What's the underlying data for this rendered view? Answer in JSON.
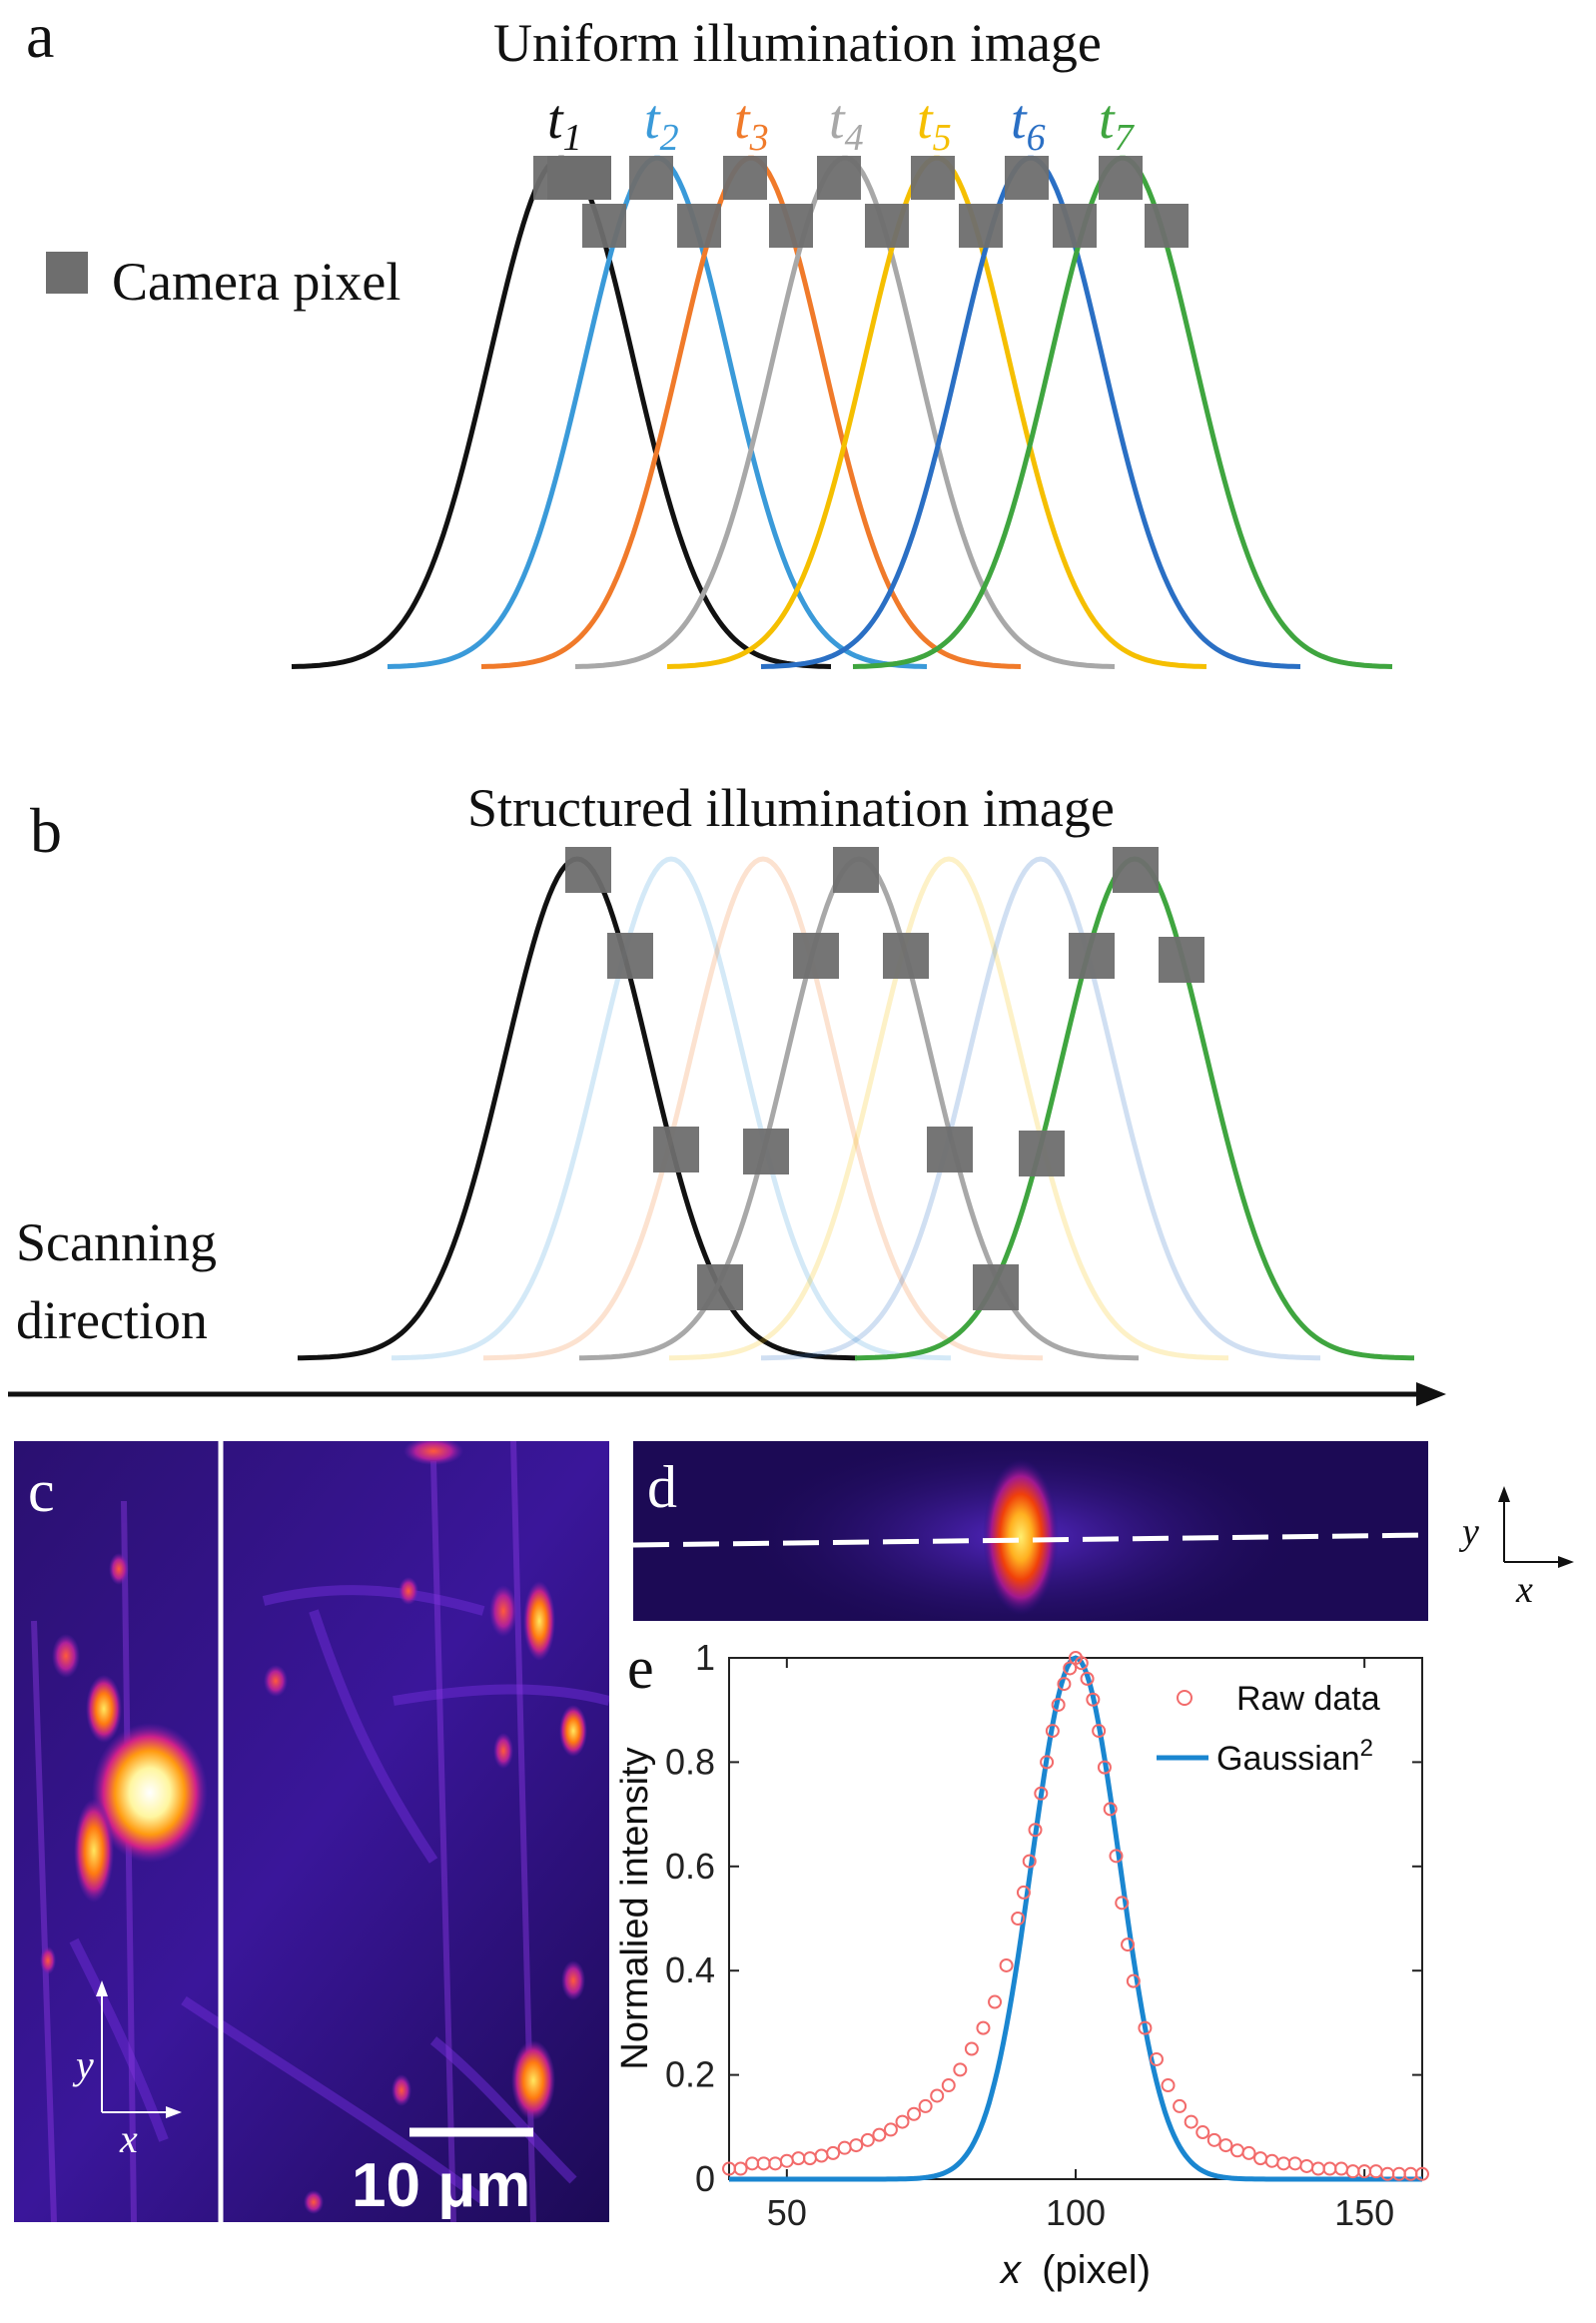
{
  "panel_a": {
    "letter": "a",
    "title": "Uniform illumination image",
    "legend_label": "Camera pixel",
    "time_labels": [
      {
        "base": "t",
        "sub": "1",
        "color": "#111111"
      },
      {
        "base": "t",
        "sub": "2",
        "color": "#3a9ad9"
      },
      {
        "base": "t",
        "sub": "3",
        "color": "#f07a2a"
      },
      {
        "base": "t",
        "sub": "4",
        "color": "#a8a8a8"
      },
      {
        "base": "t",
        "sub": "5",
        "color": "#f5bf00"
      },
      {
        "base": "t",
        "sub": "6",
        "color": "#2a6fc4"
      },
      {
        "base": "t",
        "sub": "7",
        "color": "#3fa53f"
      }
    ]
  },
  "panel_b": {
    "letter": "b",
    "title": "Structured illumination image",
    "scan_label_line1": "Scanning",
    "scan_label_line2": "direction"
  },
  "panel_c": {
    "letter": "c",
    "scale_bar": "10 μm",
    "axis_y": "y",
    "axis_x": "x"
  },
  "panel_d": {
    "letter": "d",
    "axis_y": "y",
    "axis_x": "x"
  },
  "colors": {
    "pixel_gray": "#6e6e6e",
    "raw_marker": "#f26b6b",
    "fit_line": "#1a86d0",
    "image_bg": "#1c0a55"
  },
  "chart_data": {
    "type": "scatter",
    "panel_letter": "e",
    "xlabel_italic": "x",
    "xlabel_rest": "(pixel)",
    "ylabel": "Normalied intensity",
    "xlim": [
      40,
      160
    ],
    "ylim": [
      0,
      1
    ],
    "x_ticks": [
      50,
      100,
      150
    ],
    "x_tick_labels": [
      "50",
      "100",
      "150"
    ],
    "y_ticks": [
      0,
      0.2,
      0.4,
      0.6,
      0.8,
      1
    ],
    "y_tick_labels": [
      "0",
      "0.2",
      "0.4",
      "0.6",
      "0.8",
      "1"
    ],
    "legend": [
      "Raw data",
      "Gaussian",
      "2"
    ],
    "series": [
      {
        "name": "Raw data",
        "style": "open-circle",
        "x": [
          40,
          42,
          44,
          46,
          48,
          50,
          52,
          54,
          56,
          58,
          60,
          62,
          64,
          66,
          68,
          70,
          72,
          74,
          76,
          78,
          80,
          82,
          84,
          86,
          88,
          90,
          91,
          92,
          93,
          94,
          95,
          96,
          97,
          98,
          99,
          100,
          101,
          102,
          103,
          104,
          105,
          106,
          107,
          108,
          109,
          110,
          112,
          114,
          116,
          118,
          120,
          122,
          124,
          126,
          128,
          130,
          132,
          134,
          136,
          138,
          140,
          142,
          144,
          146,
          148,
          150,
          152,
          154,
          156,
          158,
          160
        ],
        "y": [
          0.02,
          0.02,
          0.03,
          0.03,
          0.03,
          0.035,
          0.04,
          0.04,
          0.045,
          0.05,
          0.06,
          0.065,
          0.075,
          0.085,
          0.095,
          0.11,
          0.125,
          0.14,
          0.16,
          0.18,
          0.21,
          0.25,
          0.29,
          0.34,
          0.41,
          0.5,
          0.55,
          0.61,
          0.67,
          0.74,
          0.8,
          0.86,
          0.91,
          0.95,
          0.98,
          1.0,
          0.99,
          0.96,
          0.92,
          0.86,
          0.79,
          0.71,
          0.62,
          0.53,
          0.45,
          0.38,
          0.29,
          0.23,
          0.18,
          0.14,
          0.11,
          0.09,
          0.075,
          0.065,
          0.055,
          0.05,
          0.04,
          0.035,
          0.03,
          0.03,
          0.025,
          0.02,
          0.02,
          0.02,
          0.015,
          0.015,
          0.015,
          0.01,
          0.01,
          0.01,
          0.01
        ]
      },
      {
        "name": "Gaussian^2",
        "style": "line",
        "center": 100,
        "fwhm": 18
      }
    ]
  }
}
